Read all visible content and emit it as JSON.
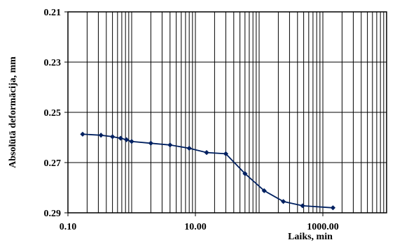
{
  "chart_data": {
    "type": "line",
    "xlabel": "Laiks, min",
    "ylabel": "Absolūtā deformācija,  mm",
    "x_scale": "log",
    "xlim": [
      0.1,
      10000
    ],
    "ylim": [
      0.21,
      0.29
    ],
    "y_inverted": true,
    "grid": {
      "major_x": true,
      "minor_x": true,
      "major_y": true
    },
    "x_tick_labels": [
      {
        "value": 0.1,
        "label": "0.10"
      },
      {
        "value": 10,
        "label": "10.00"
      },
      {
        "value": 1000,
        "label": "1000.00"
      }
    ],
    "y_tick_labels": [
      {
        "value": 0.21,
        "label": "0.21"
      },
      {
        "value": 0.23,
        "label": "0.23"
      },
      {
        "value": 0.25,
        "label": "0.25"
      },
      {
        "value": 0.27,
        "label": "0.27"
      },
      {
        "value": 0.29,
        "label": "0.29"
      }
    ],
    "series": [
      {
        "color": "#002060",
        "marker": "diamond",
        "points": [
          {
            "x": 0.17,
            "y": 0.2587
          },
          {
            "x": 0.33,
            "y": 0.2591
          },
          {
            "x": 0.5,
            "y": 0.2597
          },
          {
            "x": 0.67,
            "y": 0.2603
          },
          {
            "x": 0.83,
            "y": 0.2609
          },
          {
            "x": 1.0,
            "y": 0.2616
          },
          {
            "x": 2.0,
            "y": 0.2623
          },
          {
            "x": 4.0,
            "y": 0.263
          },
          {
            "x": 8.0,
            "y": 0.2643
          },
          {
            "x": 15,
            "y": 0.266
          },
          {
            "x": 30,
            "y": 0.2665
          },
          {
            "x": 60,
            "y": 0.2744
          },
          {
            "x": 120,
            "y": 0.2812
          },
          {
            "x": 240,
            "y": 0.2855
          },
          {
            "x": 480,
            "y": 0.2872
          },
          {
            "x": 1440,
            "y": 0.288
          }
        ]
      }
    ]
  }
}
